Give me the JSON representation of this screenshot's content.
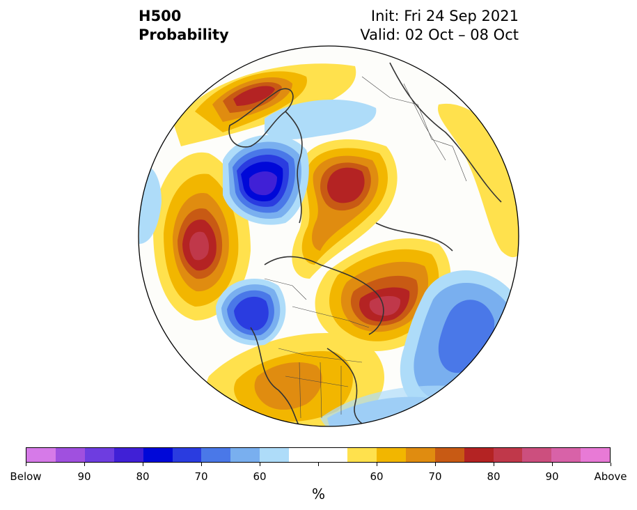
{
  "title": {
    "line1": "H500",
    "line2": "Probability"
  },
  "meta": {
    "init": "Init: Fri 24 Sep 2021",
    "valid": "Valid: 02 Oct – 08 Oct"
  },
  "colorbar": {
    "colors": [
      "#d67ae8",
      "#a050df",
      "#6e3de0",
      "#4020d6",
      "#0008d8",
      "#2a3ce0",
      "#4a78e8",
      "#79afef",
      "#aedcf9",
      "#ffffff",
      "#ffffff",
      "#ffe14d",
      "#f2b600",
      "#e08c10",
      "#c85a14",
      "#b42323",
      "#c0384a",
      "#cc4f7e",
      "#d862a8",
      "#e87ad6"
    ],
    "ticks": [
      "Below",
      "90",
      "80",
      "70",
      "60",
      "",
      "",
      "60",
      "70",
      "80",
      "90",
      "Above"
    ],
    "unit": "%"
  },
  "map_colors": {
    "ocean_bg": "#ffffff",
    "land_lines": "#333333",
    "boundary": "#000000"
  }
}
